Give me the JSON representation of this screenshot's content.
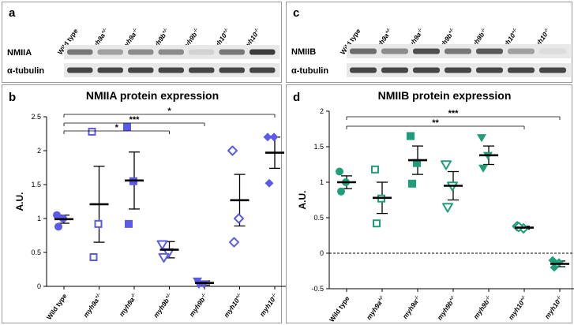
{
  "panels": {
    "a": {
      "label": "a",
      "lanes": [
        "Wild type",
        "myh9a+/-",
        "myh9a-/-",
        "myh9b+/-",
        "myh9b-/-",
        "myh10+/-",
        "myh10-/-"
      ],
      "rows": [
        "NMIIA",
        "α-tubulin"
      ],
      "band_intensity": [
        [
          0.55,
          0.35,
          0.45,
          0.45,
          0.1,
          0.55,
          0.85
        ],
        [
          0.8,
          0.8,
          0.8,
          0.8,
          0.8,
          0.8,
          0.8
        ]
      ]
    },
    "c": {
      "label": "c",
      "lanes": [
        "Wild type",
        "myh9a+/-",
        "myh9a-/-",
        "myh9b+/-",
        "myh9b-/-",
        "myh10+/-",
        "myh10-/-"
      ],
      "rows": [
        "NMIIB",
        "α-tubulin"
      ],
      "band_intensity": [
        [
          0.6,
          0.45,
          0.75,
          0.55,
          0.7,
          0.35,
          0.05
        ],
        [
          0.8,
          0.8,
          0.8,
          0.8,
          0.8,
          0.8,
          0.8
        ]
      ]
    },
    "b": {
      "label": "b"
    },
    "d": {
      "label": "d"
    }
  },
  "chart_data": [
    {
      "type": "scatter",
      "title": "NMIIA protein expression",
      "ylabel": "A.U.",
      "ylim": [
        0,
        2.5
      ],
      "yticks": [
        "0",
        "0.5",
        "1",
        "1.5",
        "2",
        "2.5"
      ],
      "categories": [
        "Wild type",
        "myh9a+/-",
        "myh9a-/-",
        "myh9b+/-",
        "myh9b-/-",
        "myh10+/-",
        "myh10-/-"
      ],
      "color": "#5b5be8",
      "markers": [
        "circle-filled",
        "square-open",
        "square-filled",
        "triangle-down-open",
        "triangle-down-filled",
        "diamond-open",
        "diamond-filled"
      ],
      "points": [
        [
          1.05,
          1.0,
          0.88
        ],
        [
          2.28,
          0.92,
          0.43
        ],
        [
          2.35,
          1.55,
          0.92
        ],
        [
          0.62,
          0.5,
          0.43
        ],
        [
          0.08,
          0.04,
          0.03
        ],
        [
          2.0,
          1.0,
          0.65
        ],
        [
          2.2,
          2.2,
          1.52
        ]
      ],
      "mean": [
        0.99,
        1.21,
        1.56,
        0.54,
        0.05,
        1.27,
        1.97
      ],
      "sem": [
        0.06,
        0.56,
        0.42,
        0.12,
        0.03,
        0.38,
        0.23
      ],
      "significance": [
        {
          "from": 0,
          "to": 3,
          "label": "*"
        },
        {
          "from": 0,
          "to": 4,
          "label": "***"
        },
        {
          "from": 0,
          "to": 6,
          "label": "*"
        }
      ]
    },
    {
      "type": "scatter",
      "title": "NMIIB protein expression",
      "ylabel": "A.U.",
      "ylim": [
        -0.5,
        2
      ],
      "yticks": [
        "-0.5",
        "0",
        "0.5",
        "1",
        "1.5",
        "2"
      ],
      "categories": [
        "Wild type",
        "myh9a+/-",
        "myh9a-/-",
        "myh9b+/-",
        "myh9b-/-",
        "myh10+/-",
        "myh10-/-"
      ],
      "color": "#1e9e7a",
      "markers": [
        "circle-filled",
        "square-open",
        "square-filled",
        "triangle-down-open",
        "triangle-down-filled",
        "diamond-open",
        "diamond-filled"
      ],
      "points": [
        [
          1.15,
          1.0,
          0.87
        ],
        [
          1.18,
          0.77,
          0.42
        ],
        [
          1.65,
          1.27,
          0.98
        ],
        [
          1.25,
          0.95,
          0.65
        ],
        [
          1.63,
          1.38,
          1.2
        ],
        [
          0.38,
          0.35,
          0.37
        ],
        [
          -0.1,
          -0.13,
          -0.2
        ]
      ],
      "mean": [
        1.0,
        0.78,
        1.31,
        0.95,
        1.38,
        0.36,
        -0.15
      ],
      "sem": [
        0.09,
        0.22,
        0.2,
        0.2,
        0.13,
        0.02,
        0.04
      ],
      "zero_line": true,
      "significance": [
        {
          "from": 0,
          "to": 5,
          "label": "**"
        },
        {
          "from": 0,
          "to": 6,
          "label": "***"
        }
      ]
    }
  ]
}
